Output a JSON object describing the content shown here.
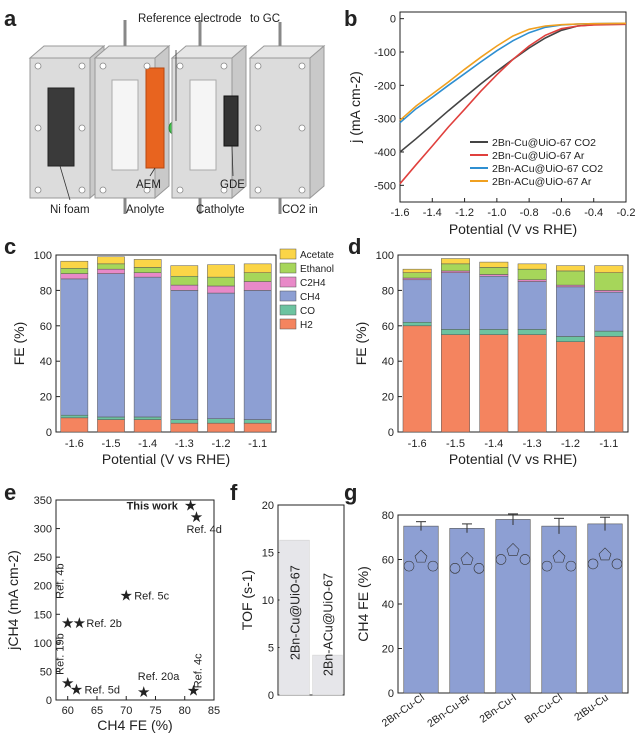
{
  "panel_labels": [
    "a",
    "b",
    "c",
    "d",
    "e",
    "f",
    "g"
  ],
  "panel_a": {
    "labels": {
      "reference_electrode": "Reference electrode",
      "to_gc": "to GC",
      "aem": "AEM",
      "gde": "GDE",
      "ni_foam": "Ni foam",
      "anolyte": "Anolyte",
      "catholyte": "Catholyte",
      "co2_in": "CO2 in"
    }
  },
  "chart_data": [
    {
      "panel": "b",
      "type": "line",
      "xlabel": "Potential (V vs RHE)",
      "ylabel": "j (mA cm-2)",
      "xlim": [
        -1.6,
        -0.2
      ],
      "ylim": [
        -550,
        20
      ],
      "xticks": [
        "-1.6",
        "-1.4",
        "-1.2",
        "-1.0",
        "-0.8",
        "-0.6",
        "-0.4",
        "-0.2"
      ],
      "yticks": [
        "0",
        "-100",
        "-200",
        "-300",
        "-400",
        "-500"
      ],
      "legend_position": "bottom-right",
      "series": [
        {
          "name": "2Bn-Cu@UiO-67 CO2",
          "color": "#444444",
          "x": [
            -1.6,
            -1.5,
            -1.4,
            -1.3,
            -1.2,
            -1.1,
            -1.0,
            -0.9,
            -0.8,
            -0.7,
            -0.6,
            -0.5,
            -0.4,
            -0.2
          ],
          "y": [
            -400,
            -360,
            -318,
            -276,
            -236,
            -196,
            -158,
            -122,
            -88,
            -58,
            -35,
            -22,
            -18,
            -15
          ]
        },
        {
          "name": "2Bn-Cu@UiO-67 Ar",
          "color": "#e0403d",
          "x": [
            -1.6,
            -1.5,
            -1.4,
            -1.3,
            -1.2,
            -1.1,
            -1.0,
            -0.9,
            -0.8,
            -0.7,
            -0.6,
            -0.5,
            -0.4,
            -0.2
          ],
          "y": [
            -495,
            -438,
            -382,
            -325,
            -272,
            -218,
            -168,
            -122,
            -82,
            -50,
            -30,
            -22,
            -19,
            -17
          ]
        },
        {
          "name": "2Bn-ACu@UiO-67 CO2",
          "color": "#2f8fd1",
          "x": [
            -1.6,
            -1.5,
            -1.4,
            -1.3,
            -1.2,
            -1.1,
            -1.0,
            -0.9,
            -0.8,
            -0.7,
            -0.6,
            -0.5,
            -0.4,
            -0.2
          ],
          "y": [
            -312,
            -270,
            -236,
            -200,
            -165,
            -130,
            -96,
            -66,
            -42,
            -26,
            -19,
            -16,
            -15,
            -14
          ]
        },
        {
          "name": "2Bn-ACu@UiO-67 Ar",
          "color": "#f0a020",
          "x": [
            -1.6,
            -1.5,
            -1.4,
            -1.3,
            -1.2,
            -1.1,
            -1.0,
            -0.9,
            -0.8,
            -0.7,
            -0.6,
            -0.5,
            -0.4,
            -0.2
          ],
          "y": [
            -305,
            -262,
            -226,
            -190,
            -152,
            -116,
            -82,
            -52,
            -32,
            -22,
            -18,
            -16,
            -15,
            -14
          ]
        }
      ]
    },
    {
      "panel": "c",
      "type": "bar",
      "stacked": true,
      "xlabel": "Potential (V vs RHE)",
      "ylabel": "FE (%)",
      "ylim": [
        0,
        100
      ],
      "yticks": [
        "0",
        "20",
        "40",
        "60",
        "80",
        "100"
      ],
      "categories": [
        "-1.6",
        "-1.5",
        "-1.4",
        "-1.3",
        "-1.2",
        "-1.1"
      ],
      "legend_position": "top-right",
      "series": [
        {
          "name": "H2",
          "color": "#f4845f",
          "values": [
            8,
            7,
            7,
            5,
            5,
            5
          ]
        },
        {
          "name": "CO",
          "color": "#6cc3a0",
          "values": [
            1.5,
            1.5,
            1.5,
            2,
            2.5,
            2
          ]
        },
        {
          "name": "CH4",
          "color": "#8d9fd3",
          "values": [
            77,
            81,
            79,
            73,
            71,
            73
          ]
        },
        {
          "name": "C2H4",
          "color": "#e889c8",
          "values": [
            3,
            2.5,
            2.5,
            3,
            4,
            5
          ]
        },
        {
          "name": "Ethanol",
          "color": "#a6d65a",
          "values": [
            3,
            3,
            3,
            5,
            5,
            5
          ]
        },
        {
          "name": "Acetate",
          "color": "#fbd547",
          "values": [
            4,
            4,
            4.5,
            6,
            7,
            5
          ]
        }
      ]
    },
    {
      "panel": "d",
      "type": "bar",
      "stacked": true,
      "xlabel": "Potential (V vs RHE)",
      "ylabel": "FE (%)",
      "ylim": [
        0,
        100
      ],
      "yticks": [
        "0",
        "20",
        "40",
        "60",
        "80",
        "100"
      ],
      "categories": [
        "-1.6",
        "-1.5",
        "-1.4",
        "-1.3",
        "-1.2",
        "-1.1"
      ],
      "series": [
        {
          "name": "H2",
          "color": "#f4845f",
          "values": [
            60,
            55,
            55,
            55,
            51,
            54
          ]
        },
        {
          "name": "CO",
          "color": "#6cc3a0",
          "values": [
            2,
            3,
            3,
            3,
            3,
            3
          ]
        },
        {
          "name": "CH4",
          "color": "#8d9fd3",
          "values": [
            24,
            32,
            30,
            27,
            28,
            22
          ]
        },
        {
          "name": "C2H4",
          "color": "#e889c8",
          "values": [
            1,
            1,
            1,
            1,
            1,
            1
          ]
        },
        {
          "name": "Ethanol",
          "color": "#a6d65a",
          "values": [
            3,
            4,
            4,
            6,
            8,
            10
          ]
        },
        {
          "name": "Acetate",
          "color": "#fbd547",
          "values": [
            2,
            3,
            3,
            3,
            3,
            4
          ]
        }
      ]
    },
    {
      "panel": "e",
      "type": "scatter",
      "xlabel": "CH4 FE (%)",
      "ylabel": "jCH4 (mA cm-2)",
      "xlim": [
        58,
        85
      ],
      "ylim": [
        0,
        350
      ],
      "xticks": [
        "60",
        "65",
        "70",
        "75",
        "80",
        "85"
      ],
      "yticks": [
        "0",
        "50",
        "100",
        "150",
        "200",
        "250",
        "300",
        "350"
      ],
      "points": [
        {
          "label": "This work",
          "x": 81,
          "y": 340
        },
        {
          "label": "Ref. 4d",
          "x": 82,
          "y": 320
        },
        {
          "label": "Ref. 5c",
          "x": 70,
          "y": 183
        },
        {
          "label": "Ref. 4b",
          "x": 60,
          "y": 135
        },
        {
          "label": "Ref. 2b",
          "x": 62,
          "y": 135
        },
        {
          "label": "Ref. 19b",
          "x": 60,
          "y": 30
        },
        {
          "label": "Ref. 5d",
          "x": 61.5,
          "y": 18
        },
        {
          "label": "Ref. 20a",
          "x": 73,
          "y": 14
        },
        {
          "label": "Ref. 4c",
          "x": 81.5,
          "y": 17
        }
      ]
    },
    {
      "panel": "f",
      "type": "bar",
      "ylabel": "TOF (s-1)",
      "ylim": [
        0,
        20
      ],
      "yticks": [
        "0",
        "5",
        "10",
        "15",
        "20"
      ],
      "categories": [
        "2Bn-Cu@UiO-67",
        "2Bn-ACu@UiO-67"
      ],
      "values": [
        16.3,
        4.2
      ]
    },
    {
      "panel": "g",
      "type": "bar",
      "ylabel": "CH4 FE (%)",
      "ylim": [
        0,
        80
      ],
      "yticks": [
        "0",
        "20",
        "40",
        "60",
        "80"
      ],
      "categories": [
        "2Bn-Cu-Cl",
        "2Bn-Cu-Br",
        "2Bn-Cu-I",
        "Bn-Cu-Cl",
        "2tBu-Cu"
      ],
      "values": [
        75,
        74,
        78,
        75,
        76
      ],
      "errors": [
        2,
        2,
        2.5,
        3.5,
        3
      ],
      "color": "#8d9fd3"
    }
  ]
}
